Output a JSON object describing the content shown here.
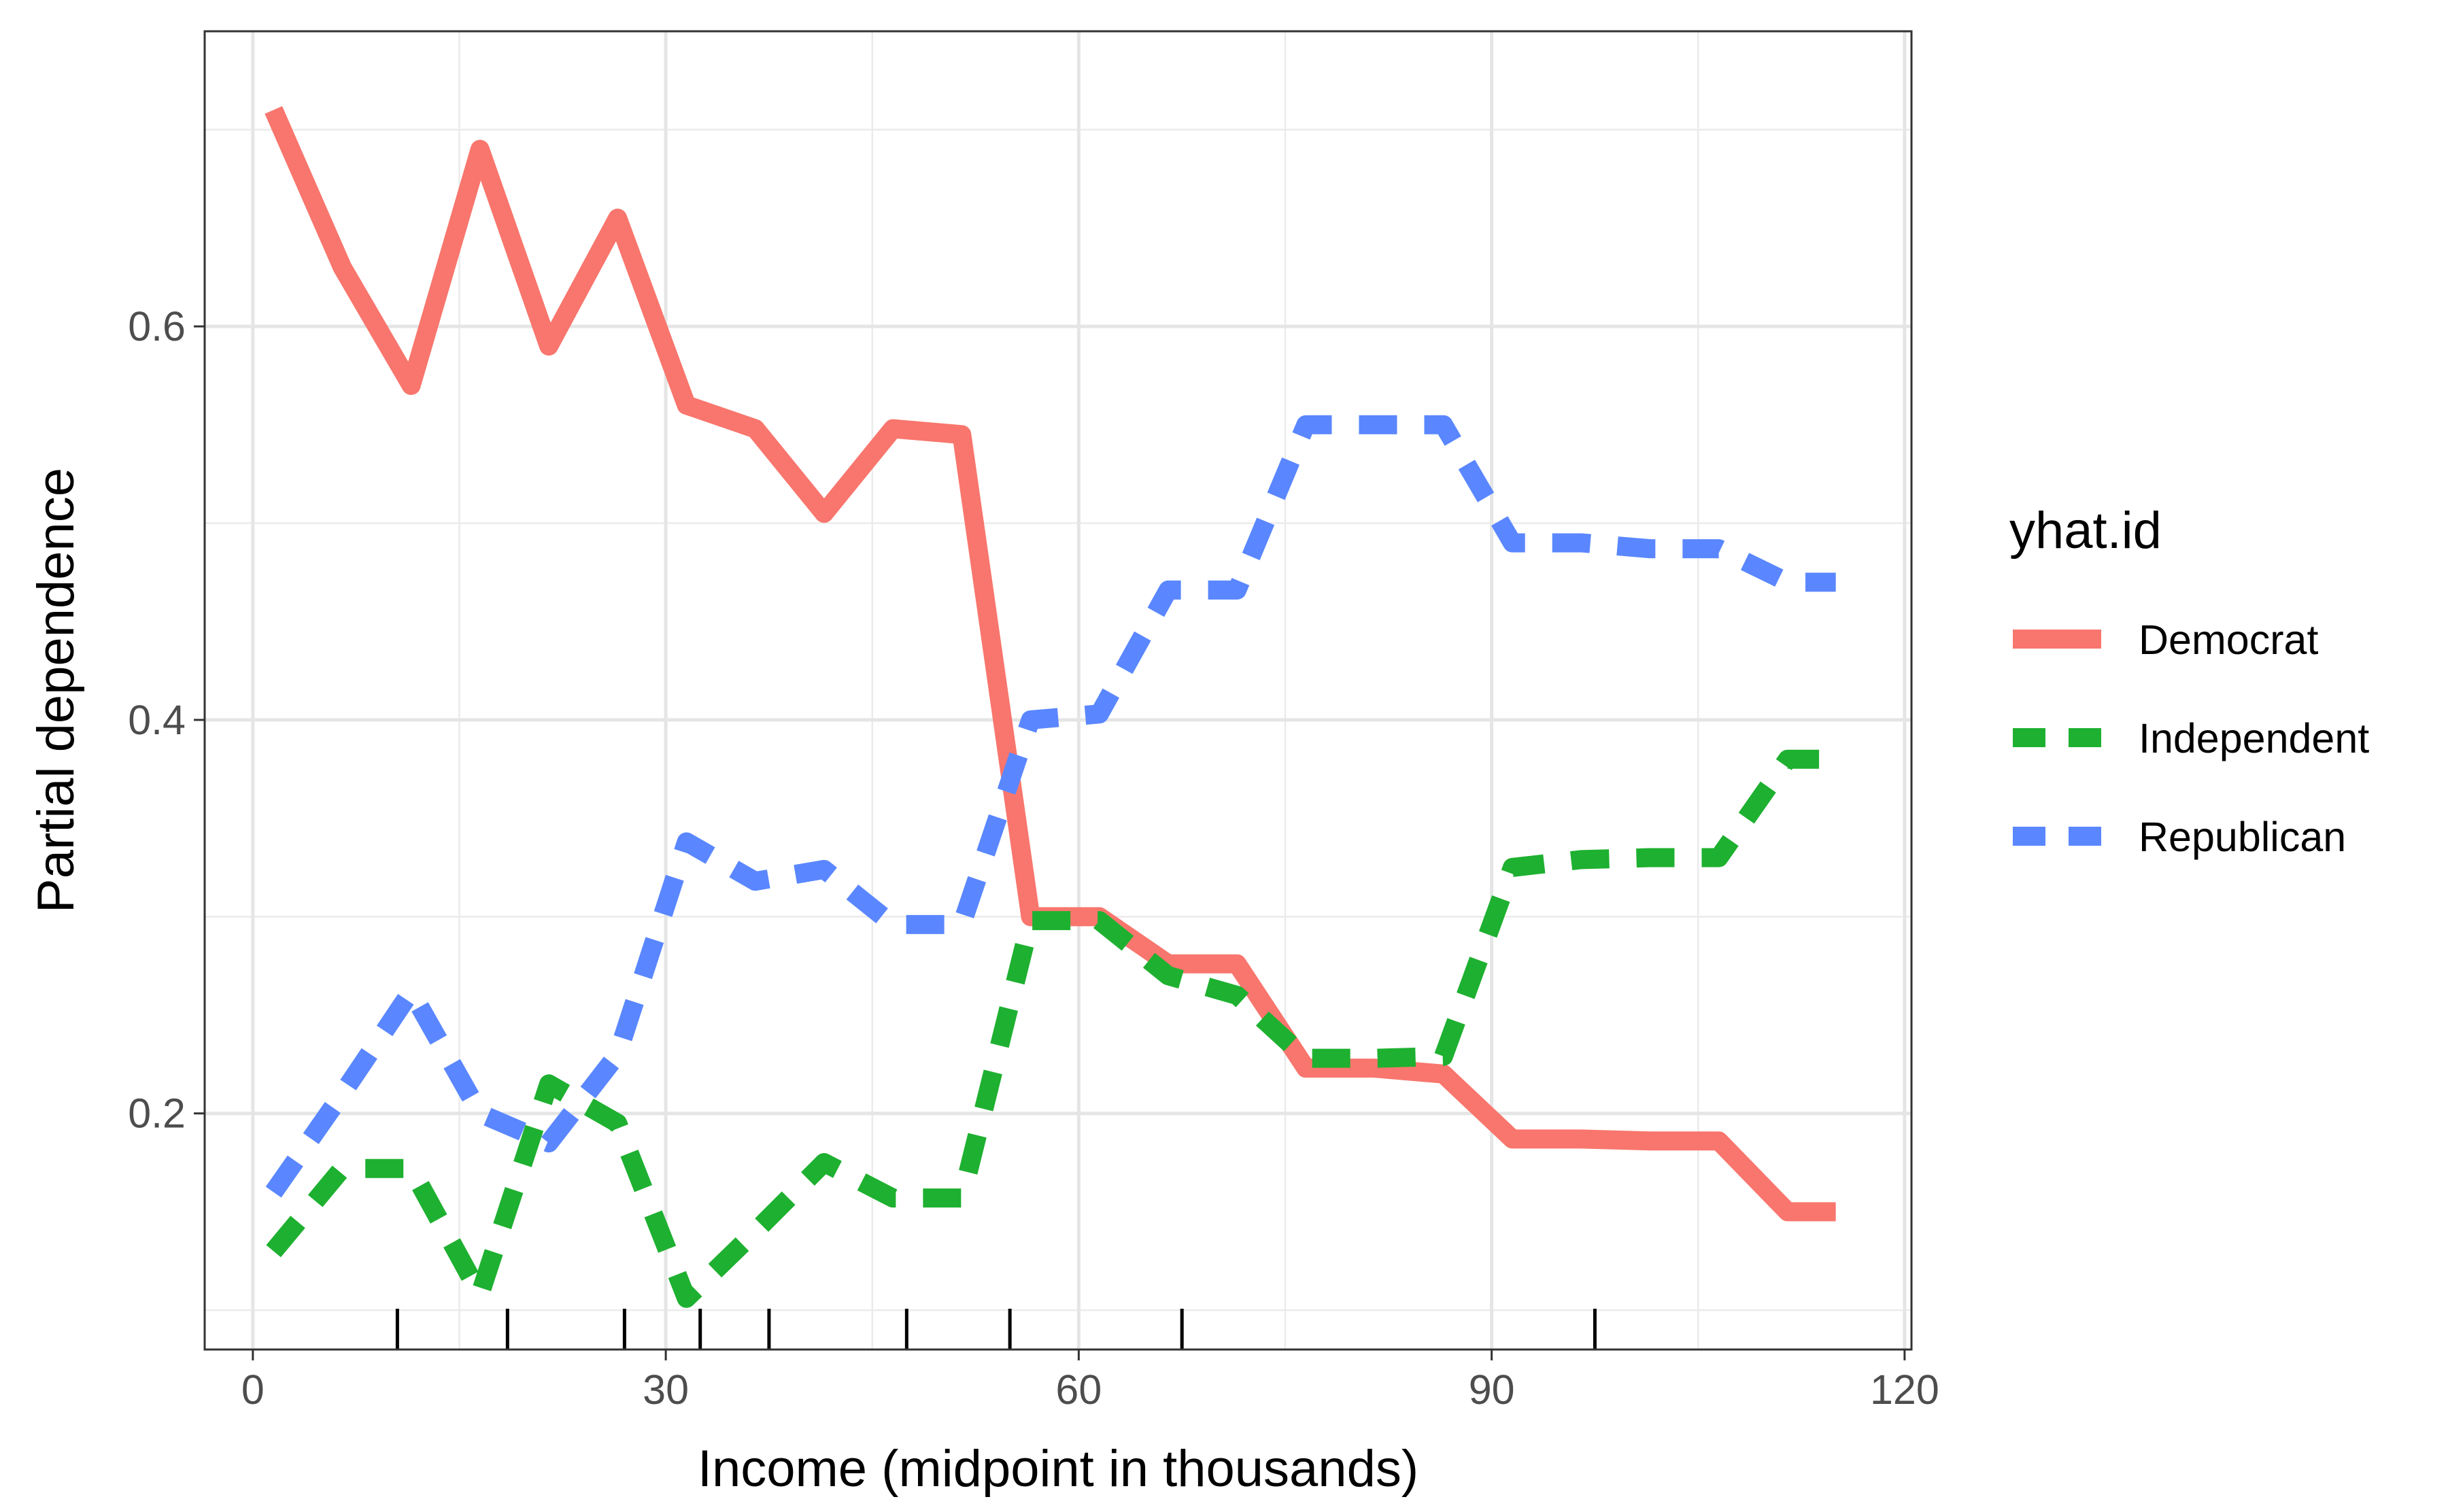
{
  "chart_data": {
    "type": "line",
    "title": "",
    "xlabel": "Income (midpoint in thousands)",
    "ylabel": "Partial dependence",
    "xlim": [
      -3.5,
      120.5
    ],
    "ylim": [
      0.08,
      0.75
    ],
    "x_ticks": [
      0,
      30,
      60,
      90,
      120
    ],
    "y_ticks": [
      0.2,
      0.4,
      0.6
    ],
    "y_tick_labels": [
      "0.2",
      "0.4",
      "0.6"
    ],
    "grid": true,
    "legend": {
      "title": "yhat.id",
      "position": "right"
    },
    "rug_x": [
      10.5,
      18.5,
      27,
      32.5,
      37.5,
      47.5,
      55,
      67.5,
      97.5
    ],
    "series": [
      {
        "name": "Democrat",
        "color": "#F8766D",
        "dash": "solid",
        "x": [
          1.5,
          6.5,
          11.5,
          16.5,
          21.5,
          26.5,
          31.5,
          36.5,
          41.5,
          46.5,
          51.5,
          56.5,
          61.5,
          66.5,
          71.5,
          76.5,
          81.5,
          86.5,
          91.5,
          96.5,
          101.5,
          106.5,
          111.5,
          115
        ],
        "y": [
          0.71,
          0.63,
          0.57,
          0.69,
          0.59,
          0.655,
          0.56,
          0.548,
          0.505,
          0.548,
          0.545,
          0.3,
          0.3,
          0.276,
          0.276,
          0.223,
          0.223,
          0.22,
          0.187,
          0.187,
          0.186,
          0.186,
          0.15,
          0.15
        ]
      },
      {
        "name": "Independent",
        "color": "#1EB030",
        "dash": "dashed",
        "x": [
          1.5,
          6.5,
          11.5,
          16.5,
          21.5,
          26.5,
          31.5,
          36.5,
          41.5,
          46.5,
          51.5,
          56.5,
          61.5,
          66.5,
          71.5,
          76.5,
          81.5,
          86.5,
          91.5,
          96.5,
          101.5,
          106.5,
          111.5,
          115
        ],
        "y": [
          0.13,
          0.172,
          0.172,
          0.108,
          0.215,
          0.195,
          0.106,
          0.14,
          0.175,
          0.157,
          0.157,
          0.298,
          0.298,
          0.27,
          0.26,
          0.228,
          0.228,
          0.229,
          0.325,
          0.329,
          0.33,
          0.33,
          0.38,
          0.38
        ]
      },
      {
        "name": "Republican",
        "color": "#5A87FF",
        "dash": "dashed",
        "x": [
          1.5,
          6.5,
          11.5,
          16.5,
          21.5,
          26.5,
          31.5,
          36.5,
          41.5,
          46.5,
          51.5,
          56.5,
          61.5,
          66.5,
          71.5,
          76.5,
          81.5,
          86.5,
          91.5,
          96.5,
          101.5,
          106.5,
          111.5,
          115
        ],
        "y": [
          0.16,
          0.21,
          0.262,
          0.2,
          0.185,
          0.23,
          0.338,
          0.318,
          0.324,
          0.296,
          0.296,
          0.4,
          0.403,
          0.466,
          0.466,
          0.55,
          0.55,
          0.55,
          0.49,
          0.49,
          0.487,
          0.487,
          0.47,
          0.47
        ]
      }
    ]
  }
}
